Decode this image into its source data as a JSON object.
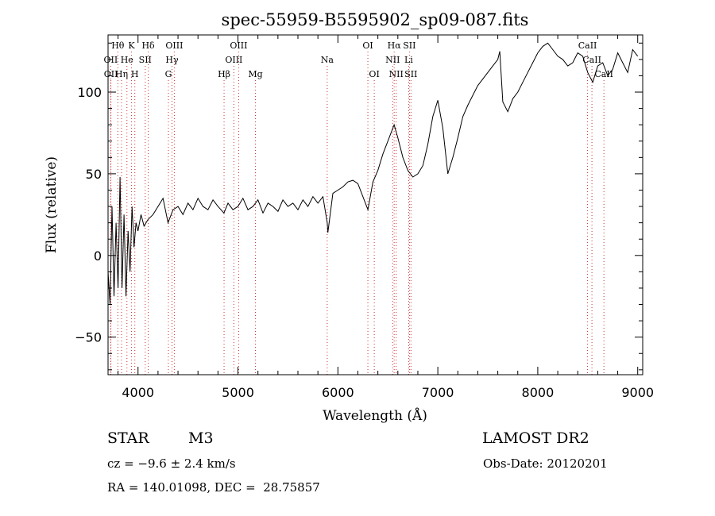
{
  "chart_data": {
    "type": "line",
    "title": "spec-55959-B5595902_sp09-087.fits",
    "xlabel": "Wavelength (Å)",
    "ylabel": "Flux (relative)",
    "xlim": [
      3700,
      9050
    ],
    "ylim": [
      -73,
      135
    ],
    "x_ticks": [
      4000,
      5000,
      6000,
      7000,
      8000,
      9000
    ],
    "y_ticks": [
      -50,
      0,
      50,
      100
    ],
    "grid": false,
    "line_color": "#000000",
    "marker_color": "#cc3333",
    "series": [
      {
        "x": [
          3700,
          3720,
          3740,
          3760,
          3780,
          3800,
          3820,
          3840,
          3860,
          3880,
          3900,
          3920,
          3940,
          3960,
          3980,
          4000,
          4030,
          4060,
          4100,
          4150,
          4200,
          4250,
          4300,
          4350,
          4400,
          4450,
          4500,
          4550,
          4600,
          4650,
          4700,
          4750,
          4800,
          4860,
          4900,
          4950,
          5000,
          5050,
          5100,
          5150,
          5200,
          5250,
          5300,
          5350,
          5400,
          5450,
          5500,
          5550,
          5600,
          5650,
          5700,
          5750,
          5800,
          5850,
          5893,
          5900,
          5950,
          6000,
          6050,
          6100,
          6150,
          6200,
          6250,
          6300,
          6350,
          6400,
          6450,
          6500,
          6550,
          6563,
          6600,
          6650,
          6700,
          6750,
          6800,
          6850,
          6900,
          6950,
          7000,
          7050,
          7100,
          7150,
          7200,
          7250,
          7300,
          7350,
          7400,
          7450,
          7500,
          7550,
          7600,
          7620,
          7650,
          7700,
          7750,
          7800,
          7850,
          7900,
          7950,
          8000,
          8050,
          8100,
          8150,
          8200,
          8250,
          8300,
          8350,
          8400,
          8450,
          8500,
          8550,
          8600,
          8650,
          8700,
          8750,
          8800,
          8850,
          8900,
          8950,
          9000
        ],
        "y": [
          -10,
          -30,
          30,
          -25,
          20,
          -20,
          48,
          -20,
          25,
          -25,
          15,
          -10,
          30,
          5,
          20,
          15,
          25,
          18,
          22,
          25,
          30,
          35,
          20,
          28,
          30,
          25,
          32,
          28,
          35,
          30,
          28,
          34,
          30,
          26,
          32,
          28,
          30,
          35,
          28,
          30,
          34,
          26,
          32,
          30,
          27,
          34,
          30,
          32,
          28,
          34,
          30,
          36,
          32,
          36,
          20,
          14,
          38,
          40,
          42,
          45,
          46,
          44,
          36,
          28,
          45,
          52,
          62,
          70,
          78,
          80,
          72,
          60,
          52,
          48,
          50,
          55,
          68,
          85,
          95,
          78,
          50,
          60,
          72,
          85,
          92,
          98,
          104,
          108,
          112,
          116,
          120,
          125,
          94,
          88,
          96,
          100,
          106,
          112,
          118,
          124,
          128,
          130,
          126,
          122,
          120,
          116,
          118,
          124,
          122,
          112,
          106,
          116,
          118,
          110,
          114,
          124,
          118,
          112,
          126,
          122
        ]
      }
    ],
    "line_labels": [
      {
        "text": "Hθ",
        "row": 1,
        "x": 3798
      },
      {
        "text": "K",
        "row": 1,
        "x": 3934
      },
      {
        "text": "Hδ",
        "row": 1,
        "x": 4102
      },
      {
        "text": "OIII",
        "row": 1,
        "x": 4363
      },
      {
        "text": "OIII",
        "row": 1,
        "x": 5007
      },
      {
        "text": "OI",
        "row": 1,
        "x": 6300
      },
      {
        "text": "Hα",
        "row": 1,
        "x": 6563
      },
      {
        "text": "SII",
        "row": 1,
        "x": 6716
      },
      {
        "text": "CaII",
        "row": 1,
        "x": 8498
      },
      {
        "text": "OII",
        "row": 2,
        "x": 3727
      },
      {
        "text": "He",
        "row": 2,
        "x": 3889
      },
      {
        "text": "SII",
        "row": 2,
        "x": 4072
      },
      {
        "text": "Hγ",
        "row": 2,
        "x": 4340
      },
      {
        "text": "OIII",
        "row": 2,
        "x": 4959
      },
      {
        "text": "Na",
        "row": 2,
        "x": 5893
      },
      {
        "text": "NII",
        "row": 2,
        "x": 6548
      },
      {
        "text": "Li",
        "row": 2,
        "x": 6708
      },
      {
        "text": "CaII",
        "row": 2,
        "x": 8542
      },
      {
        "text": "OII",
        "row": 3,
        "x": 3729
      },
      {
        "text": "Hη",
        "row": 3,
        "x": 3835
      },
      {
        "text": "H",
        "row": 3,
        "x": 3968
      },
      {
        "text": "G",
        "row": 3,
        "x": 4304
      },
      {
        "text": "Hβ",
        "row": 3,
        "x": 4861
      },
      {
        "text": "Mg",
        "row": 3,
        "x": 5175
      },
      {
        "text": "OI",
        "row": 3,
        "x": 6364
      },
      {
        "text": "NII",
        "row": 3,
        "x": 6583
      },
      {
        "text": "SII",
        "row": 3,
        "x": 6731
      },
      {
        "text": "CaII",
        "row": 3,
        "x": 8662
      }
    ]
  },
  "info": {
    "object_type": "STAR",
    "subclass": "M3",
    "survey": "LAMOST DR2",
    "cz": "cz = −9.6 ± 2.4 km/s",
    "obs_date": "Obs-Date: 20120201",
    "coords": "RA = 140.01098, DEC =  28.75857"
  }
}
